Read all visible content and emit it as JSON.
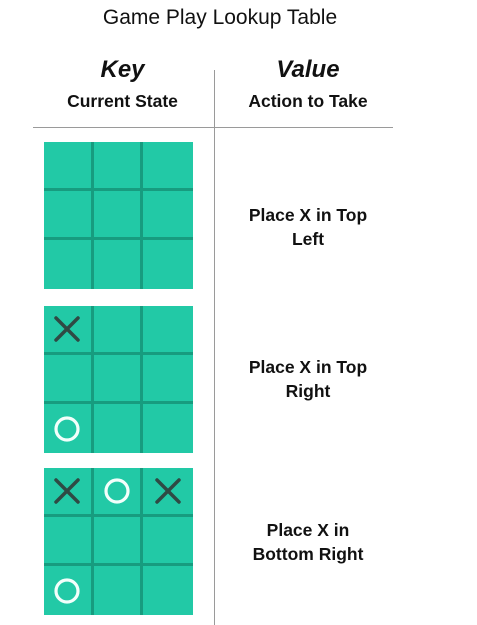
{
  "title": "Game Play Lookup Table",
  "columns": {
    "key": {
      "label": "Key",
      "sublabel": "Current State"
    },
    "value": {
      "label": "Value",
      "sublabel": "Action to Take"
    }
  },
  "colors": {
    "board": "#22c9a6",
    "grid_line": "#179c7f",
    "x_mark": "#2f4a44",
    "o_mark": "#f2fffb"
  },
  "rows": [
    {
      "board": [
        "",
        "",
        "",
        "",
        "",
        "",
        "",
        "",
        ""
      ],
      "action_line1": "Place X in Top",
      "action_line2": "Left"
    },
    {
      "board": [
        "X",
        "",
        "",
        "",
        "",
        "",
        "O",
        "",
        ""
      ],
      "action_line1": "Place X in Top",
      "action_line2": "Right"
    },
    {
      "board": [
        "X",
        "O",
        "X",
        "",
        "",
        "",
        "O",
        "",
        ""
      ],
      "action_line1": "Place X in",
      "action_line2": "Bottom Right"
    }
  ]
}
